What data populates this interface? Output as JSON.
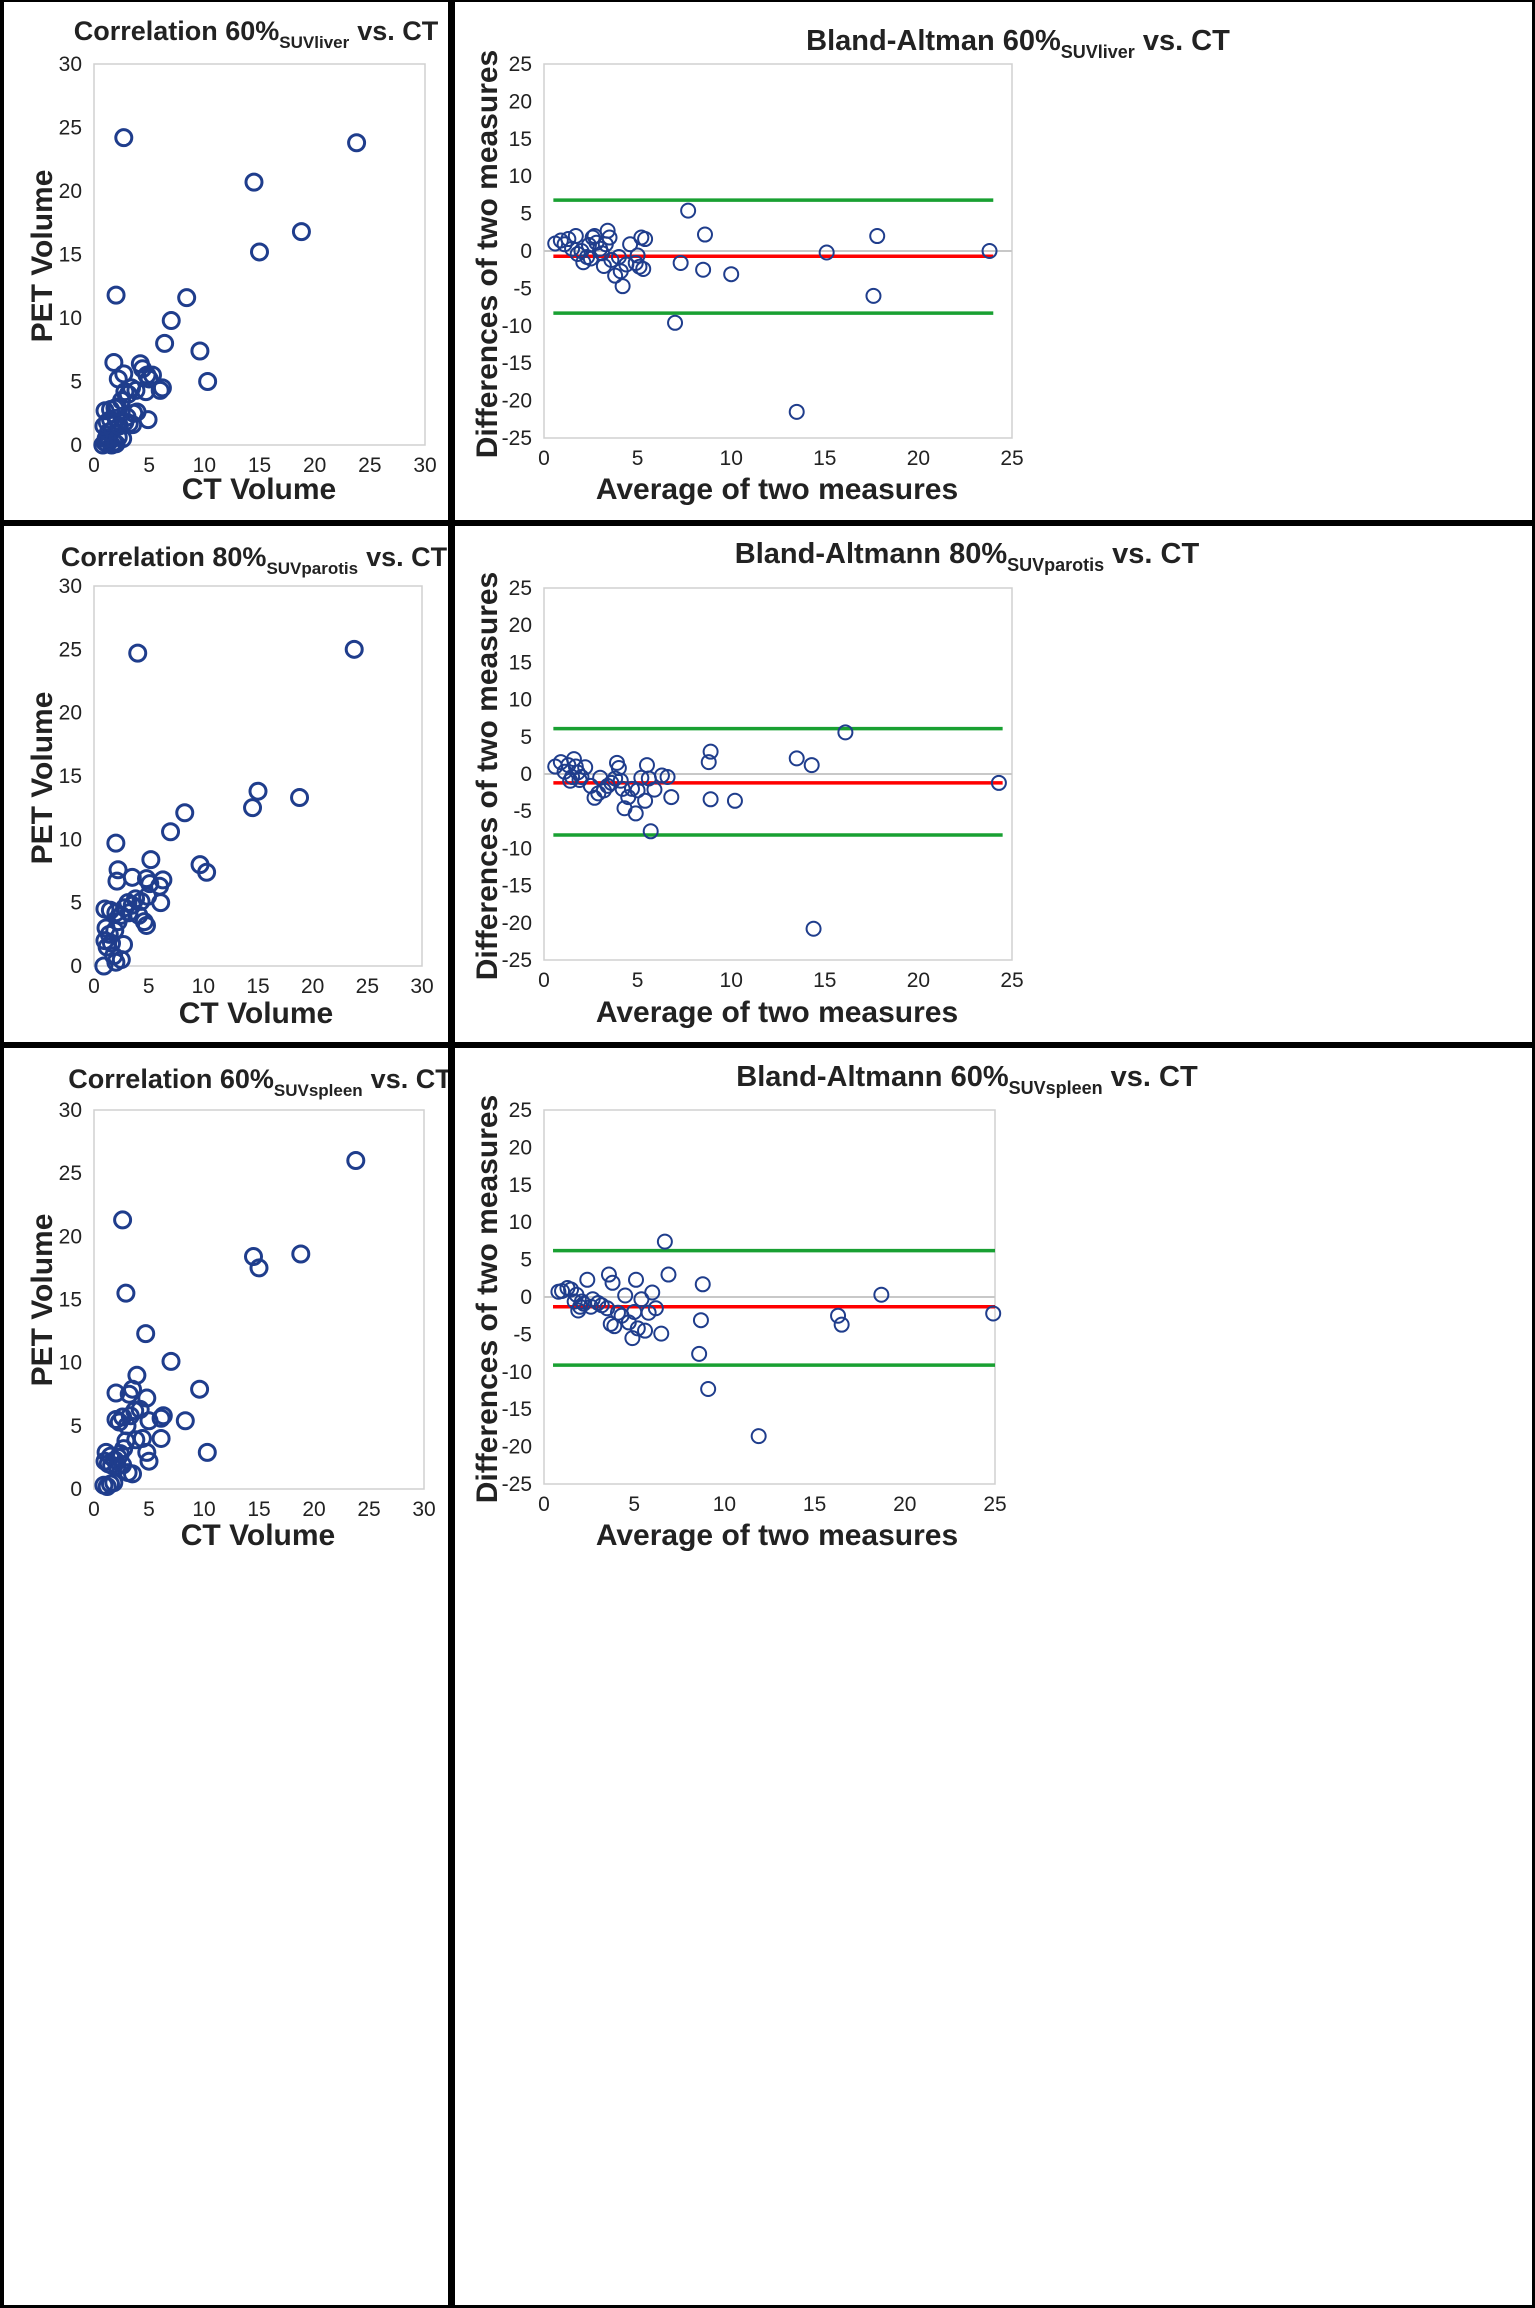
{
  "colors": {
    "marker": "#1f3d8c",
    "mean_line": "#ff0000",
    "limit_line": "#19a032",
    "frame": "#000000",
    "plot_border": "#d0d0d0",
    "zero_line": "#c8c8c8"
  },
  "chart_data": [
    {
      "type": "scatter",
      "title": "Correlation 60%",
      "title_sub": "SUVliver",
      "title_tail": "vs. CT",
      "xlabel": "CT Volume",
      "ylabel": "PET Volume",
      "xlim": [
        0,
        30
      ],
      "ylim": [
        0,
        30
      ],
      "xticks": [
        0,
        5,
        10,
        15,
        20,
        25,
        30
      ],
      "yticks": [
        0,
        5,
        10,
        15,
        20,
        25,
        30
      ],
      "points": [
        [
          0.8,
          0.0
        ],
        [
          1.0,
          0.2
        ],
        [
          1.2,
          0.1
        ],
        [
          1.4,
          0.3
        ],
        [
          1.6,
          0.0
        ],
        [
          1.8,
          0.2
        ],
        [
          2.0,
          0.1
        ],
        [
          1.1,
          0.5
        ],
        [
          1.3,
          1.0
        ],
        [
          0.9,
          1.5
        ],
        [
          1.0,
          2.7
        ],
        [
          1.5,
          2.8
        ],
        [
          1.9,
          2.9
        ],
        [
          1.2,
          1.8
        ],
        [
          1.5,
          2.0
        ],
        [
          1.7,
          1.2
        ],
        [
          2.0,
          2.1
        ],
        [
          2.2,
          0.6
        ],
        [
          2.6,
          0.5
        ],
        [
          2.3,
          1.5
        ],
        [
          2.8,
          1.8
        ],
        [
          3.0,
          2.2
        ],
        [
          3.2,
          1.7
        ],
        [
          3.5,
          1.6
        ],
        [
          3.6,
          2.5
        ],
        [
          3.9,
          2.6
        ],
        [
          2.1,
          3.0
        ],
        [
          2.5,
          3.5
        ],
        [
          2.8,
          4.2
        ],
        [
          3.1,
          4.0
        ],
        [
          3.4,
          4.5
        ],
        [
          3.8,
          4.3
        ],
        [
          4.2,
          6.4
        ],
        [
          4.4,
          6.0
        ],
        [
          4.8,
          5.5
        ],
        [
          5.0,
          5.2
        ],
        [
          5.3,
          5.5
        ],
        [
          4.7,
          4.2
        ],
        [
          4.9,
          2.0
        ],
        [
          2.2,
          5.2
        ],
        [
          2.7,
          5.6
        ],
        [
          1.8,
          6.5
        ],
        [
          6.0,
          4.3
        ],
        [
          6.2,
          4.5
        ],
        [
          6.4,
          8.0
        ],
        [
          7.0,
          9.8
        ],
        [
          8.4,
          11.6
        ],
        [
          9.6,
          7.4
        ],
        [
          10.3,
          5.0
        ],
        [
          2.0,
          11.8
        ],
        [
          2.7,
          24.2
        ],
        [
          14.5,
          20.7
        ],
        [
          15.0,
          15.2
        ],
        [
          18.8,
          16.8
        ],
        [
          23.8,
          23.8
        ]
      ]
    },
    {
      "type": "scatter",
      "title": "Bland-Altman 60%",
      "title_sub": "SUVliver",
      "title_tail": "vs. CT",
      "xlabel": "Average of two measures",
      "ylabel": "Differences of two measures",
      "xlim": [
        0,
        25
      ],
      "ylim": [
        -25,
        25
      ],
      "xticks": [
        0,
        5,
        10,
        15,
        20,
        25
      ],
      "yticks": [
        -25,
        -20,
        -15,
        -10,
        -5,
        0,
        5,
        10,
        15,
        20,
        25
      ],
      "mean_diff": -0.7,
      "upper_limit": 6.8,
      "lower_limit": -8.3,
      "line_span": [
        0.5,
        24
      ],
      "points": [
        [
          0.6,
          1.0
        ],
        [
          0.9,
          1.4
        ],
        [
          1.1,
          0.9
        ],
        [
          1.3,
          1.6
        ],
        [
          1.5,
          0.3
        ],
        [
          1.7,
          2.0
        ],
        [
          1.8,
          -0.4
        ],
        [
          2.0,
          0.0
        ],
        [
          2.1,
          -1.5
        ],
        [
          2.3,
          -0.8
        ],
        [
          2.4,
          0.8
        ],
        [
          2.5,
          -1.0
        ],
        [
          2.6,
          1.8
        ],
        [
          2.7,
          2.0
        ],
        [
          2.8,
          1.1
        ],
        [
          3.0,
          0.3
        ],
        [
          3.1,
          -0.3
        ],
        [
          3.2,
          -2.0
        ],
        [
          3.3,
          0.9
        ],
        [
          3.4,
          2.7
        ],
        [
          3.5,
          1.8
        ],
        [
          3.6,
          -1.2
        ],
        [
          3.8,
          -3.3
        ],
        [
          4.0,
          -0.8
        ],
        [
          4.1,
          -2.7
        ],
        [
          4.2,
          -4.7
        ],
        [
          4.4,
          -1.8
        ],
        [
          4.6,
          0.9
        ],
        [
          4.9,
          -1.6
        ],
        [
          5.0,
          -0.6
        ],
        [
          5.1,
          -2.1
        ],
        [
          5.2,
          1.8
        ],
        [
          5.3,
          -2.4
        ],
        [
          5.4,
          1.6
        ],
        [
          7.0,
          -9.6
        ],
        [
          7.3,
          -1.6
        ],
        [
          7.7,
          5.4
        ],
        [
          8.5,
          -2.5
        ],
        [
          8.6,
          2.2
        ],
        [
          10.0,
          -3.1
        ],
        [
          13.5,
          -21.5
        ],
        [
          15.1,
          -0.2
        ],
        [
          17.6,
          -6.0
        ],
        [
          17.8,
          2.0
        ],
        [
          23.8,
          0.0
        ]
      ]
    },
    {
      "type": "scatter",
      "title": "Correlation 80%",
      "title_sub": "SUVparotis",
      "title_tail": "vs. CT",
      "xlabel": "CT Volume",
      "ylabel": "PET Volume",
      "xlim": [
        0,
        30
      ],
      "ylim": [
        0,
        30
      ],
      "xticks": [
        0,
        5,
        10,
        15,
        20,
        25,
        30
      ],
      "yticks": [
        0,
        5,
        10,
        15,
        20,
        25,
        30
      ],
      "points": [
        [
          0.9,
          0.0
        ],
        [
          1.2,
          1.5
        ],
        [
          1.0,
          2.0
        ],
        [
          1.4,
          2.5
        ],
        [
          1.1,
          3.0
        ],
        [
          1.6,
          1.8
        ],
        [
          1.8,
          0.8
        ],
        [
          2.0,
          0.3
        ],
        [
          2.5,
          0.5
        ],
        [
          2.7,
          1.7
        ],
        [
          1.9,
          2.8
        ],
        [
          2.2,
          3.5
        ],
        [
          2.5,
          4.0
        ],
        [
          1.0,
          4.5
        ],
        [
          1.5,
          4.4
        ],
        [
          2.0,
          4.2
        ],
        [
          2.8,
          4.6
        ],
        [
          3.1,
          5.0
        ],
        [
          3.2,
          4.2
        ],
        [
          3.5,
          4.8
        ],
        [
          3.8,
          5.3
        ],
        [
          4.1,
          4.0
        ],
        [
          4.3,
          5.1
        ],
        [
          4.6,
          3.5
        ],
        [
          4.8,
          3.2
        ],
        [
          4.9,
          5.5
        ],
        [
          5.1,
          6.5
        ],
        [
          4.8,
          6.9
        ],
        [
          3.5,
          7.0
        ],
        [
          2.1,
          6.7
        ],
        [
          2.2,
          7.6
        ],
        [
          5.2,
          8.4
        ],
        [
          6.0,
          6.3
        ],
        [
          6.1,
          5.0
        ],
        [
          6.3,
          6.8
        ],
        [
          7.0,
          10.6
        ],
        [
          8.3,
          12.1
        ],
        [
          9.7,
          8.0
        ],
        [
          10.3,
          7.4
        ],
        [
          2.0,
          9.7
        ],
        [
          4.0,
          24.7
        ],
        [
          14.5,
          12.5
        ],
        [
          15.0,
          13.8
        ],
        [
          18.8,
          13.3
        ],
        [
          23.8,
          25.0
        ]
      ]
    },
    {
      "type": "scatter",
      "title": "Bland-Altmann 80%",
      "title_sub": "SUVparotis",
      "title_tail": "vs. CT",
      "xlabel": "Average of two measures",
      "ylabel": "Differences of two measures",
      "xlim": [
        0,
        25
      ],
      "ylim": [
        -25,
        25
      ],
      "xticks": [
        0,
        5,
        10,
        15,
        20,
        25
      ],
      "yticks": [
        -25,
        -20,
        -15,
        -10,
        -5,
        0,
        5,
        10,
        15,
        20,
        25
      ],
      "mean_diff": -1.2,
      "upper_limit": 6.1,
      "lower_limit": -8.2,
      "line_span": [
        0.5,
        24.5
      ],
      "points": [
        [
          0.6,
          1.0
        ],
        [
          0.9,
          1.6
        ],
        [
          1.1,
          0.3
        ],
        [
          1.3,
          1.2
        ],
        [
          1.4,
          -0.9
        ],
        [
          1.5,
          -0.4
        ],
        [
          1.6,
          2.0
        ],
        [
          1.7,
          1.0
        ],
        [
          1.8,
          0.2
        ],
        [
          1.9,
          -0.8
        ],
        [
          2.0,
          -0.4
        ],
        [
          2.2,
          0.9
        ],
        [
          2.5,
          -1.6
        ],
        [
          2.7,
          -3.2
        ],
        [
          2.9,
          -2.6
        ],
        [
          3.0,
          -0.5
        ],
        [
          3.2,
          -2.2
        ],
        [
          3.4,
          -1.6
        ],
        [
          3.6,
          -1.2
        ],
        [
          3.8,
          -0.6
        ],
        [
          3.9,
          1.5
        ],
        [
          4.0,
          0.8
        ],
        [
          4.1,
          -0.9
        ],
        [
          4.2,
          -2.0
        ],
        [
          4.3,
          -4.6
        ],
        [
          4.5,
          -3.1
        ],
        [
          4.7,
          -2.0
        ],
        [
          4.9,
          -5.3
        ],
        [
          5.0,
          -2.2
        ],
        [
          5.2,
          -0.5
        ],
        [
          5.4,
          -3.6
        ],
        [
          5.5,
          1.2
        ],
        [
          5.6,
          -0.6
        ],
        [
          5.7,
          -7.7
        ],
        [
          5.9,
          -2.1
        ],
        [
          6.3,
          -0.2
        ],
        [
          6.6,
          -0.4
        ],
        [
          6.8,
          -3.1
        ],
        [
          8.8,
          1.6
        ],
        [
          8.9,
          3.0
        ],
        [
          8.9,
          -3.4
        ],
        [
          10.2,
          -3.6
        ],
        [
          13.5,
          2.1
        ],
        [
          14.3,
          1.2
        ],
        [
          14.4,
          -20.8
        ],
        [
          16.1,
          5.6
        ],
        [
          24.3,
          -1.2
        ]
      ]
    },
    {
      "type": "scatter",
      "title": "Correlation 60%",
      "title_sub": "SUVspleen",
      "title_tail": "vs. CT",
      "xlabel": "CT Volume",
      "ylabel": "PET Volume",
      "xlim": [
        0,
        30
      ],
      "ylim": [
        0,
        30
      ],
      "xticks": [
        0,
        5,
        10,
        15,
        20,
        25,
        30
      ],
      "yticks": [
        0,
        5,
        10,
        15,
        20,
        25,
        30
      ],
      "points": [
        [
          0.9,
          0.3
        ],
        [
          1.2,
          0.2
        ],
        [
          1.5,
          0.4
        ],
        [
          1.8,
          0.5
        ],
        [
          1.0,
          2.2
        ],
        [
          1.1,
          2.9
        ],
        [
          1.3,
          2.0
        ],
        [
          1.5,
          2.6
        ],
        [
          1.6,
          1.9
        ],
        [
          1.9,
          2.3
        ],
        [
          2.1,
          1.8
        ],
        [
          2.2,
          2.5
        ],
        [
          2.4,
          2.8
        ],
        [
          2.6,
          1.9
        ],
        [
          2.7,
          3.2
        ],
        [
          2.9,
          3.8
        ],
        [
          3.1,
          1.3
        ],
        [
          3.5,
          1.2
        ],
        [
          3.8,
          3.9
        ],
        [
          4.4,
          4.0
        ],
        [
          4.8,
          2.9
        ],
        [
          5.0,
          2.2
        ],
        [
          2.0,
          5.5
        ],
        [
          2.3,
          5.3
        ],
        [
          2.6,
          5.7
        ],
        [
          3.0,
          5.0
        ],
        [
          3.3,
          5.8
        ],
        [
          3.7,
          6.2
        ],
        [
          4.2,
          6.3
        ],
        [
          4.8,
          7.2
        ],
        [
          5.0,
          5.4
        ],
        [
          6.1,
          5.6
        ],
        [
          6.3,
          5.8
        ],
        [
          6.1,
          4.0
        ],
        [
          2.0,
          7.6
        ],
        [
          3.2,
          7.5
        ],
        [
          3.5,
          7.9
        ],
        [
          3.9,
          9.0
        ],
        [
          4.7,
          12.3
        ],
        [
          7.0,
          10.1
        ],
        [
          8.3,
          5.4
        ],
        [
          9.6,
          7.9
        ],
        [
          10.3,
          2.9
        ],
        [
          2.6,
          21.3
        ],
        [
          2.9,
          15.5
        ],
        [
          14.5,
          18.4
        ],
        [
          15.0,
          17.5
        ],
        [
          18.8,
          18.6
        ],
        [
          23.8,
          26.0
        ]
      ]
    },
    {
      "type": "scatter",
      "title": "Bland-Altmann 60%",
      "title_sub": "SUVspleen",
      "title_tail": "vs. CT",
      "xlabel": "Average of two measures",
      "ylabel": "Differences of two measures",
      "xlim": [
        0,
        25
      ],
      "ylim": [
        -25,
        25
      ],
      "xticks": [
        0,
        5,
        10,
        15,
        20,
        25
      ],
      "yticks": [
        -25,
        -20,
        -15,
        -10,
        -5,
        0,
        5,
        10,
        15,
        20,
        25
      ],
      "mean_diff": -1.3,
      "upper_limit": 6.2,
      "lower_limit": -9.1,
      "line_span": [
        0.5,
        25
      ],
      "points": [
        [
          0.8,
          0.7
        ],
        [
          1.0,
          0.8
        ],
        [
          1.3,
          1.2
        ],
        [
          1.5,
          1.0
        ],
        [
          1.7,
          -0.6
        ],
        [
          1.8,
          0.3
        ],
        [
          1.9,
          -1.8
        ],
        [
          2.0,
          -1.3
        ],
        [
          2.1,
          -0.6
        ],
        [
          2.2,
          -0.9
        ],
        [
          2.4,
          2.3
        ],
        [
          2.6,
          -1.3
        ],
        [
          2.7,
          -0.3
        ],
        [
          3.0,
          -0.8
        ],
        [
          3.2,
          -1.1
        ],
        [
          3.5,
          -1.5
        ],
        [
          3.6,
          3.0
        ],
        [
          3.7,
          -3.6
        ],
        [
          3.8,
          1.9
        ],
        [
          3.9,
          -3.9
        ],
        [
          4.1,
          -2.1
        ],
        [
          4.3,
          -2.5
        ],
        [
          4.5,
          0.2
        ],
        [
          4.7,
          -3.4
        ],
        [
          4.9,
          -5.5
        ],
        [
          5.0,
          -2.0
        ],
        [
          5.1,
          2.3
        ],
        [
          5.2,
          -4.2
        ],
        [
          5.4,
          -0.3
        ],
        [
          5.6,
          -4.5
        ],
        [
          5.8,
          -2.1
        ],
        [
          6.0,
          0.6
        ],
        [
          6.2,
          -1.5
        ],
        [
          6.5,
          -4.9
        ],
        [
          6.7,
          7.4
        ],
        [
          6.9,
          3.0
        ],
        [
          8.6,
          -7.6
        ],
        [
          8.7,
          -3.1
        ],
        [
          8.8,
          1.7
        ],
        [
          9.1,
          -12.3
        ],
        [
          11.9,
          -18.6
        ],
        [
          16.3,
          -2.5
        ],
        [
          16.5,
          -3.7
        ],
        [
          18.7,
          0.3
        ],
        [
          24.9,
          -2.2
        ]
      ]
    }
  ]
}
